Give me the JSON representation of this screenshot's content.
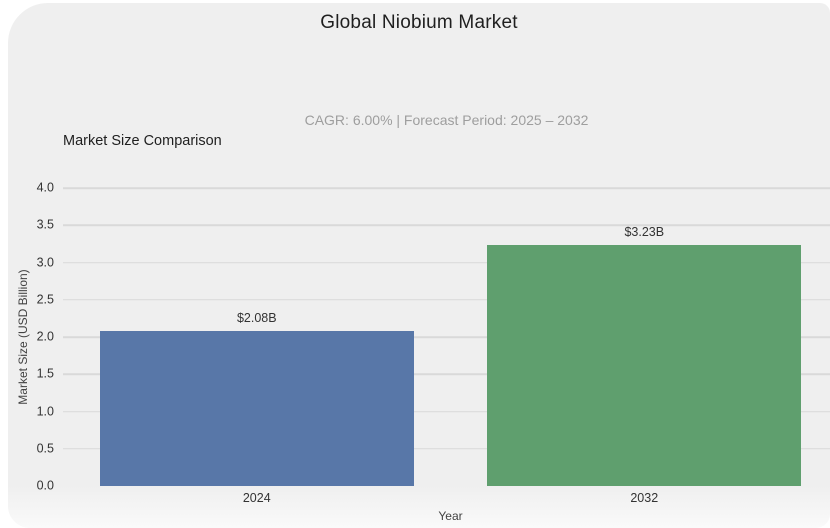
{
  "header": {
    "title": "Global Niobium Market",
    "subtitle": "CAGR: 6.00% | Forecast Period: 2025 – 2032",
    "section_title": "Market Size Comparison"
  },
  "chart_data": {
    "type": "bar",
    "title": "Market Size Comparison",
    "categories": [
      "2024",
      "2032"
    ],
    "values": [
      2.08,
      3.23
    ],
    "value_labels": [
      "$2.08B",
      "$3.23B"
    ],
    "bar_colors": [
      "#5877a8",
      "#5f9f6e"
    ],
    "xlabel": "Year",
    "ylabel": "Market Size (USD Billion)",
    "ylim": [
      0,
      4.0
    ],
    "yticks": [
      "0.0",
      "0.5",
      "1.0",
      "1.5",
      "2.0",
      "2.5",
      "3.0",
      "3.5",
      "4.0"
    ],
    "grid": true,
    "legend": false
  },
  "colors": {
    "page_bg": "#ffffff",
    "card_bg": "#efefef",
    "gridline": "#d9d9d9",
    "title_text": "#1f1f1f",
    "subtitle_text": "#9e9e9e",
    "tick_text": "#333333",
    "axis_text": "#424242"
  }
}
